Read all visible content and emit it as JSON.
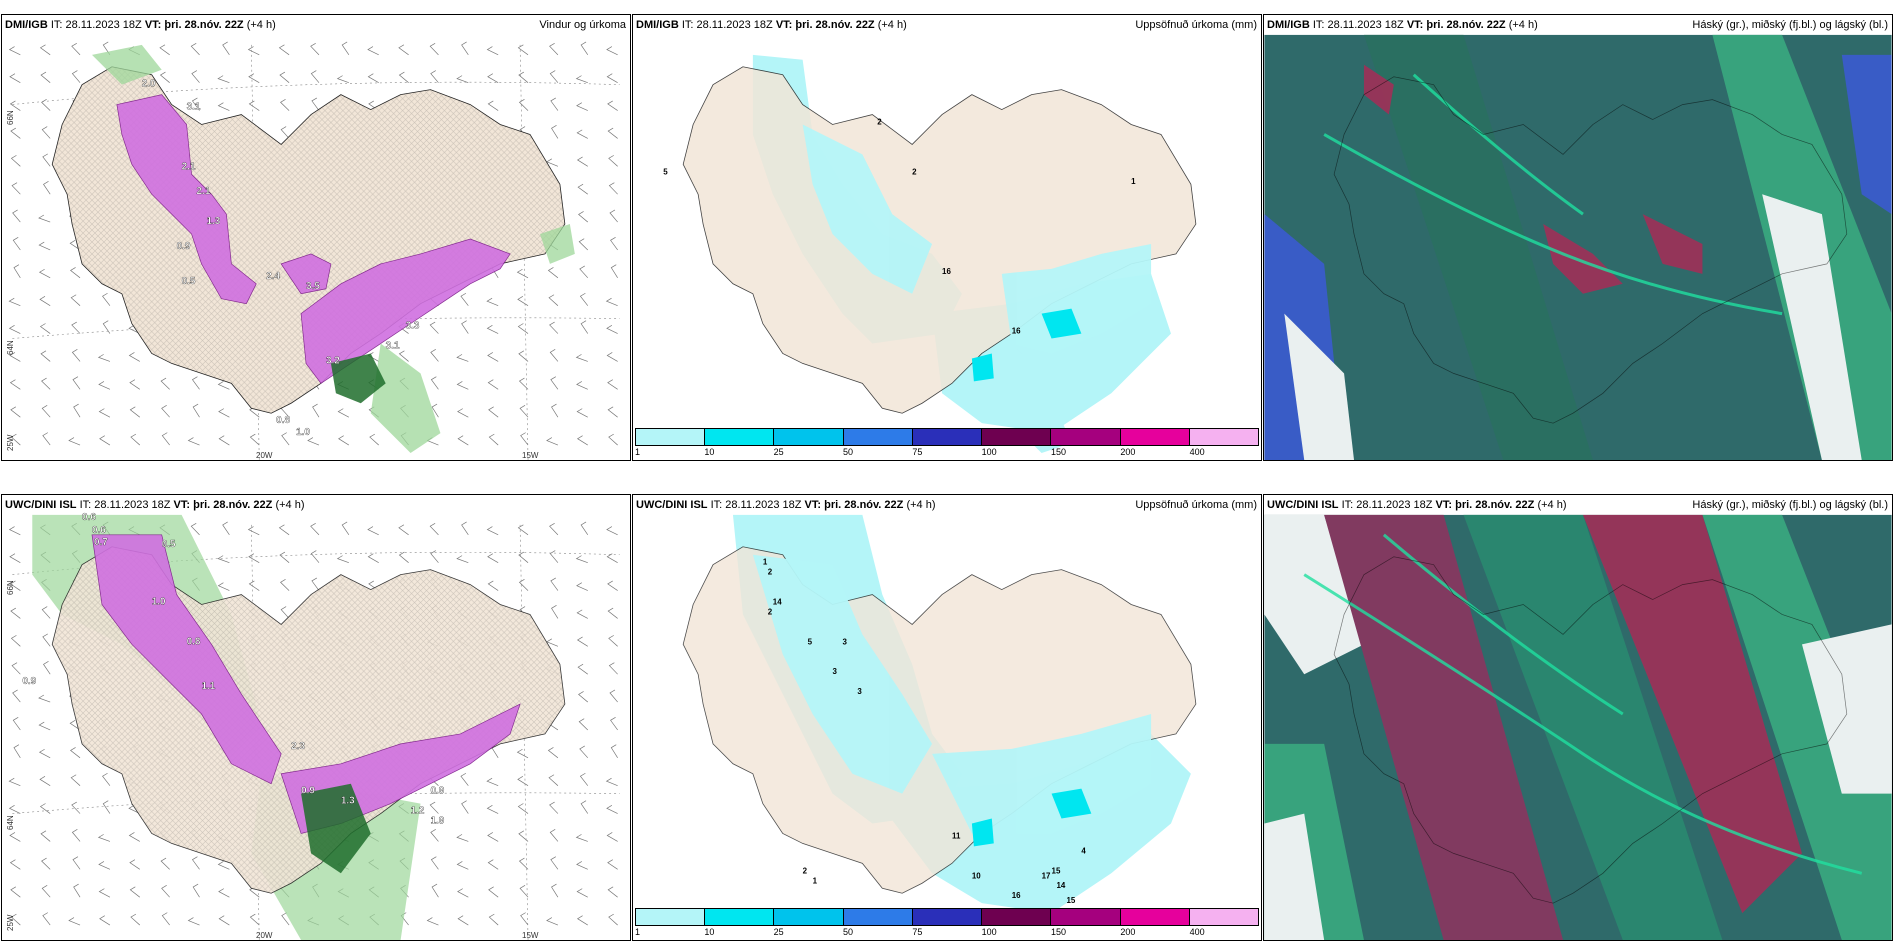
{
  "panels": [
    {
      "id": "p1",
      "model": "DMI/IGB",
      "it_label": "IT: 28.11.2023 18Z",
      "vt_label": "VT: þri. 28.nóv. 22Z",
      "lead": "(+4 h)",
      "title": "Vindur og úrkoma",
      "type": "wind"
    },
    {
      "id": "p2",
      "model": "DMI/IGB",
      "it_label": "IT: 28.11.2023 18Z",
      "vt_label": "VT: þri. 28.nóv. 22Z",
      "lead": "(+4 h)",
      "title": "Uppsöfnuð úrkoma (mm)",
      "type": "precip"
    },
    {
      "id": "p3",
      "model": "DMI/IGB",
      "it_label": "IT: 28.11.2023 18Z",
      "vt_label": "VT: þri. 28.nóv. 22Z",
      "lead": "(+4 h)",
      "title": "Háský (gr.), miðský (fj.bl.) og lágský (bl.)",
      "type": "cloud"
    },
    {
      "id": "p4",
      "model": "UWC/DINI ISL",
      "it_label": "IT: 28.11.2023 18Z",
      "vt_label": "VT: þri. 28.nóv. 22Z",
      "lead": "(+4 h)",
      "title": "",
      "type": "wind"
    },
    {
      "id": "p5",
      "model": "UWC/DINI ISL",
      "it_label": "IT: 28.11.2023 18Z",
      "vt_label": "VT: þri. 28.nóv. 22Z",
      "lead": "(+4 h)",
      "title": "Uppsöfnuð úrkoma (mm)",
      "type": "precip"
    },
    {
      "id": "p6",
      "model": "UWC/DINI ISL",
      "it_label": "IT: 28.11.2023 18Z",
      "vt_label": "VT: þri. 28.nóv. 22Z",
      "lead": "(+4 h)",
      "title": "Háský (gr.), miðský (fj.bl.) og lágský (bl.)",
      "type": "cloud"
    }
  ],
  "axis_labels": {
    "lat66": "66N",
    "lat64": "64N",
    "lat_bottom": "25W",
    "lon20": "20W",
    "lon15": "15W"
  },
  "colorbar": {
    "ticks": [
      "1",
      "10",
      "25",
      "50",
      "75",
      "100",
      "150",
      "200",
      "400"
    ],
    "colors": [
      "#b4f5f8",
      "#00e6f0",
      "#00c3ec",
      "#2d7be8",
      "#2a2fb9",
      "#6e0050",
      "#a5007e",
      "#e6009c",
      "#f5b1f0"
    ]
  },
  "wind_labels": {
    "p1": [
      "2.0",
      "3.1",
      "2.1",
      "2.1",
      "1.3",
      "0.9",
      "0.5",
      "2.4",
      "3.5",
      "3.3",
      "3.1",
      "3.2",
      "0.8",
      "1.0"
    ],
    "p4": [
      "0.6",
      "0.6",
      "0.7",
      "0.5",
      "1.0",
      "0.8",
      "0.9",
      "1.1",
      "2.3",
      "0.9",
      "1.3",
      "1.2",
      "0.9",
      "1.9"
    ]
  },
  "precip_labels": {
    "p2": [
      "2",
      "2",
      "5",
      "16",
      "16",
      "1"
    ],
    "p5": [
      "1",
      "2",
      "14",
      "2",
      "5",
      "3",
      "3",
      "3",
      "11",
      "10",
      "15",
      "16",
      "15",
      "14",
      "17",
      "4",
      "2",
      "1"
    ]
  }
}
